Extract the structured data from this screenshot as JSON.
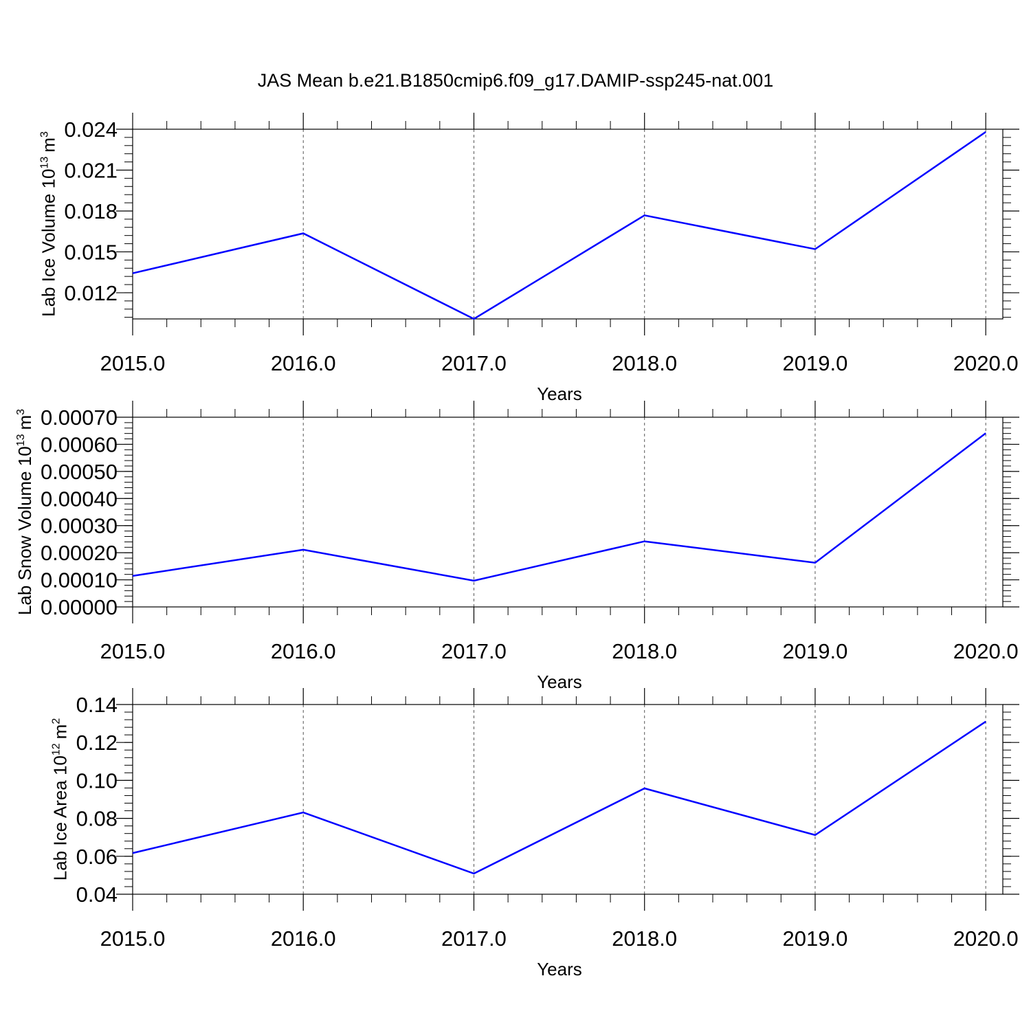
{
  "chart_data": [
    {
      "type": "line",
      "title": "JAS Mean b.e21.B1850cmip6.f09_g17.DAMIP-ssp245-nat.001",
      "x": [
        2015,
        2016,
        2017,
        2018,
        2019,
        2020
      ],
      "values": [
        0.01343,
        0.01636,
        0.01008,
        0.01768,
        0.0152,
        0.0238
      ],
      "color": "#0000ff",
      "xlim": [
        2015,
        2020.1
      ],
      "xticks": [
        {
          "value": 2015,
          "label": "2015.0"
        },
        {
          "value": 2016,
          "label": "2016.0"
        },
        {
          "value": 2017,
          "label": "2017.0"
        },
        {
          "value": 2018,
          "label": "2018.0"
        },
        {
          "value": 2019,
          "label": "2019.0"
        },
        {
          "value": 2020,
          "label": "2020.0"
        }
      ],
      "ylim": [
        0.01008,
        0.024
      ],
      "yticks": [
        0.012,
        0.015,
        0.018,
        0.021,
        0.024
      ],
      "xlabel": "Years",
      "ylabel": {
        "text": "Lab Ice Volume 10",
        "exp": "13",
        "unit": "m",
        "unit_exp": "3"
      },
      "grid": true
    },
    {
      "type": "line",
      "x": [
        2015,
        2016,
        2017,
        2018,
        2019,
        2020
      ],
      "values": [
        0.0001145,
        0.000211,
        9.67e-05,
        0.000242,
        0.000163,
        0.000641
      ],
      "color": "#0000ff",
      "xlim": [
        2015,
        2020.1
      ],
      "xticks": [
        {
          "value": 2015,
          "label": "2015.0"
        },
        {
          "value": 2016,
          "label": "2016.0"
        },
        {
          "value": 2017,
          "label": "2017.0"
        },
        {
          "value": 2018,
          "label": "2018.0"
        },
        {
          "value": 2019,
          "label": "2019.0"
        },
        {
          "value": 2020,
          "label": "2020.0"
        }
      ],
      "ylim": [
        0,
        0.0007
      ],
      "yticks": [
        {
          "value": 0,
          "label": "0.00000"
        },
        {
          "value": 0.0001,
          "label": "0.00010"
        },
        {
          "value": 0.0002,
          "label": "0.00020"
        },
        {
          "value": 0.0003,
          "label": "0.00030"
        },
        {
          "value": 0.0004,
          "label": "0.00040"
        },
        {
          "value": 0.0005,
          "label": "0.00050"
        },
        {
          "value": 0.0006,
          "label": "0.00060"
        },
        {
          "value": 0.0007,
          "label": "0.00070"
        }
      ],
      "xlabel": "Years",
      "ylabel": {
        "text": "Lab Snow Volume 10",
        "exp": "13",
        "unit": "m",
        "unit_exp": "3"
      },
      "grid": true
    },
    {
      "type": "line",
      "x": [
        2015,
        2016,
        2017,
        2018,
        2019,
        2020
      ],
      "values": [
        0.0617,
        0.0831,
        0.0509,
        0.0958,
        0.0712,
        0.131
      ],
      "color": "#0000ff",
      "xlim": [
        2015,
        2020.1
      ],
      "xticks": [
        {
          "value": 2015,
          "label": "2015.0"
        },
        {
          "value": 2016,
          "label": "2016.0"
        },
        {
          "value": 2017,
          "label": "2017.0"
        },
        {
          "value": 2018,
          "label": "2018.0"
        },
        {
          "value": 2019,
          "label": "2019.0"
        },
        {
          "value": 2020,
          "label": "2020.0"
        }
      ],
      "ylim": [
        0.04,
        0.14
      ],
      "yticks": [
        0.04,
        0.06,
        0.08,
        {
          "value": 0.1,
          "label": "0.10"
        },
        0.12,
        0.14
      ],
      "xlabel": "Years",
      "ylabel": {
        "text": "Lab Ice Area 10",
        "exp": "12",
        "unit": "m",
        "unit_exp": "2"
      },
      "grid": true
    }
  ]
}
